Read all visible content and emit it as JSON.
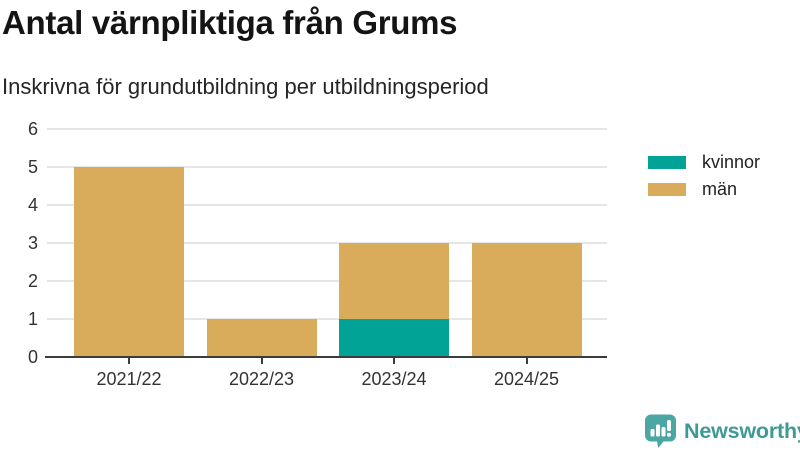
{
  "title": "Antal värnpliktiga från Grums",
  "subtitle": "Inskrivna för grundutbildning per utbildningsperiod",
  "branding": {
    "logo_text": "Newsworthy",
    "logo_icon": "newsworthy-speech-bubble-bar-chart-icon",
    "text_color": "#3d9a96",
    "bubble_color": "#4ca7a3"
  },
  "colors": {
    "kvinnor": "#00a396",
    "man": "#d9ac5c",
    "axis": "#3c3c3c",
    "grid": "#e6e6e6",
    "tick_text": "#333333",
    "title_text": "#141414"
  },
  "chart_data": {
    "type": "bar",
    "stacked": true,
    "title": "Antal värnpliktiga från Grums",
    "subtitle": "Inskrivna för grundutbildning per utbildningsperiod",
    "categories": [
      "2021/22",
      "2022/23",
      "2023/24",
      "2024/25"
    ],
    "series": [
      {
        "name": "kvinnor",
        "color": "#00a396",
        "values": [
          0,
          0,
          1,
          0
        ]
      },
      {
        "name": "män",
        "color": "#d9ac5c",
        "values": [
          5,
          1,
          2,
          3
        ]
      }
    ],
    "totals": [
      5,
      1,
      3,
      3
    ],
    "xlabel": "",
    "ylabel": "",
    "ylim": [
      0,
      6
    ],
    "yticks": [
      0,
      1,
      2,
      3,
      4,
      5,
      6
    ],
    "grid": true,
    "legend_position": "right"
  }
}
